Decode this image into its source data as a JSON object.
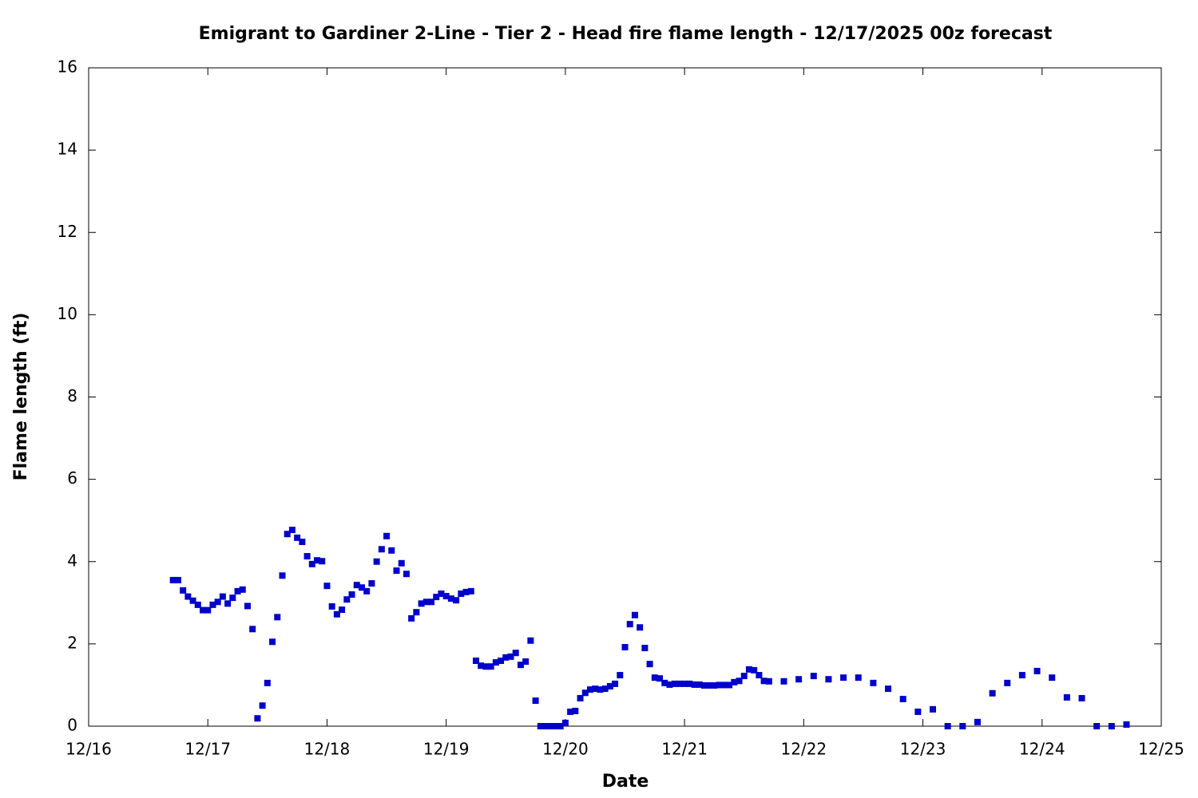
{
  "chart_data": {
    "type": "scatter",
    "title": "Emigrant to Gardiner 2-Line - Tier 2 - Head fire flame length - 12/17/2025 00z forecast",
    "xlabel": "Date",
    "ylabel": "Flame length (ft)",
    "xlim": [
      0,
      216
    ],
    "xticks": [
      {
        "value": 0,
        "label": "12/16"
      },
      {
        "value": 24,
        "label": "12/17"
      },
      {
        "value": 48,
        "label": "12/18"
      },
      {
        "value": 72,
        "label": "12/19"
      },
      {
        "value": 96,
        "label": "12/20"
      },
      {
        "value": 120,
        "label": "12/21"
      },
      {
        "value": 144,
        "label": "12/22"
      },
      {
        "value": 168,
        "label": "12/23"
      },
      {
        "value": 192,
        "label": "12/24"
      },
      {
        "value": 216,
        "label": "12/25"
      }
    ],
    "ylim": [
      0,
      16
    ],
    "yticks": [
      0,
      2,
      4,
      6,
      8,
      10,
      12,
      14,
      16
    ],
    "grid": false,
    "series": [
      {
        "color": "#0000cc",
        "x": [
          17,
          18,
          19,
          20,
          21,
          22,
          23,
          24,
          25,
          26,
          27,
          28,
          29,
          30,
          31,
          32,
          33,
          34,
          35,
          36,
          37,
          38,
          39,
          40,
          41,
          42,
          43,
          44,
          45,
          46,
          47,
          48,
          49,
          50,
          51,
          52,
          53,
          54,
          55,
          56,
          57,
          58,
          59,
          60,
          61,
          62,
          63,
          64,
          65,
          66,
          67,
          68,
          69,
          70,
          71,
          72,
          73,
          74,
          75,
          76,
          77,
          78,
          79,
          80,
          81,
          82,
          83,
          84,
          85,
          86,
          87,
          88,
          89,
          90,
          91,
          92,
          93,
          94,
          95,
          96,
          97,
          98,
          99,
          100,
          101,
          102,
          103,
          104,
          105,
          106,
          107,
          108,
          109,
          110,
          111,
          112,
          113,
          114,
          115,
          116,
          117,
          118,
          119,
          120,
          121,
          122,
          123,
          124,
          125,
          126,
          127,
          128,
          129,
          130,
          131,
          132,
          133,
          134,
          135,
          136,
          137,
          140,
          143,
          146,
          149,
          152,
          155,
          158,
          161,
          164,
          167,
          170,
          173,
          176,
          179,
          182,
          185,
          188,
          191,
          194,
          197,
          200,
          203,
          206,
          209
        ],
        "values": [
          3.55,
          3.55,
          3.3,
          3.15,
          3.05,
          2.95,
          2.82,
          2.82,
          2.95,
          3.02,
          3.15,
          2.98,
          3.12,
          3.28,
          3.32,
          2.92,
          2.36,
          0.19,
          0.5,
          1.05,
          2.05,
          2.65,
          3.66,
          4.67,
          4.77,
          4.58,
          4.48,
          4.13,
          3.94,
          4.03,
          4.01,
          3.41,
          2.91,
          2.72,
          2.83,
          3.08,
          3.2,
          3.43,
          3.37,
          3.28,
          3.47,
          4.0,
          4.3,
          4.62,
          4.27,
          3.78,
          3.96,
          3.7,
          2.62,
          2.77,
          2.98,
          3.02,
          3.02,
          3.14,
          3.22,
          3.16,
          3.1,
          3.06,
          3.22,
          3.26,
          3.28,
          1.59,
          1.47,
          1.45,
          1.45,
          1.55,
          1.59,
          1.67,
          1.69,
          1.78,
          1.49,
          1.57,
          2.08,
          0.62,
          0,
          0,
          0,
          0,
          0,
          0.08,
          0.35,
          0.37,
          0.68,
          0.81,
          0.89,
          0.91,
          0.89,
          0.91,
          0.97,
          1.03,
          1.24,
          1.92,
          2.48,
          2.7,
          2.4,
          1.9,
          1.51,
          1.18,
          1.16,
          1.05,
          1.01,
          1.03,
          1.03,
          1.03,
          1.03,
          1.01,
          1.01,
          0.99,
          0.99,
          0.99,
          1.0,
          1.0,
          1.0,
          1.07,
          1.1,
          1.22,
          1.38,
          1.36,
          1.24,
          1.1,
          1.09,
          1.09,
          1.14,
          1.22,
          1.14,
          1.18,
          1.18,
          1.05,
          0.91,
          0.66,
          0.35,
          0.41,
          0,
          0,
          0.1,
          0.8,
          1.05,
          1.24,
          1.34,
          1.18,
          0.7,
          0.68,
          0,
          0,
          0.04
        ]
      }
    ]
  }
}
